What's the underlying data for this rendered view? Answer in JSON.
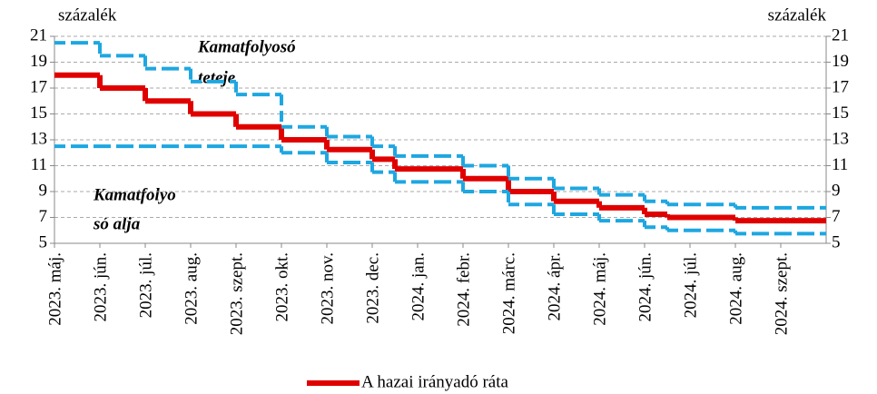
{
  "chart_data": {
    "type": "step",
    "y_label": "százalék",
    "y2_label": "százalék",
    "categories": [
      "2023. máj.",
      null,
      "2023. jún.",
      null,
      "2023. júl.",
      null,
      "2023. aug.",
      null,
      "2023. szept.",
      null,
      "2023. okt.",
      null,
      "2023. nov.",
      null,
      "2023. dec.",
      null,
      "2024. jan.",
      null,
      "2024. febr.",
      null,
      "2024. márc.",
      null,
      "2024. ápr.",
      null,
      "2024. máj.",
      null,
      "2024. jún.",
      null,
      "2024. júl.",
      null,
      "2024. aug.",
      null,
      "2024. szept.",
      null
    ],
    "series": [
      {
        "name": "A hazai irányadó ráta",
        "color": "#e00000",
        "dashed": false,
        "values": [
          18,
          18,
          17,
          17,
          16,
          16,
          15,
          15,
          14,
          14,
          13,
          13,
          12.25,
          12.25,
          11.5,
          10.75,
          10.75,
          10.75,
          10,
          10,
          9,
          9,
          8.25,
          8.25,
          7.75,
          7.75,
          7.25,
          7,
          7,
          7,
          6.75,
          6.75,
          6.75,
          6.75
        ]
      },
      {
        "name": null,
        "color": "#1ea7e1",
        "dashed": true,
        "values": [
          20.5,
          20.5,
          19.5,
          19.5,
          18.5,
          18.5,
          17.5,
          17.5,
          16.5,
          16.5,
          14,
          14,
          13.25,
          13.25,
          12.5,
          11.75,
          11.75,
          11.75,
          11,
          11,
          10,
          10,
          9.25,
          9.25,
          8.75,
          8.75,
          8.25,
          8,
          8,
          8,
          7.75,
          7.75,
          7.75,
          7.75
        ]
      },
      {
        "name": null,
        "color": "#1ea7e1",
        "dashed": true,
        "values": [
          12.5,
          12.5,
          12.5,
          12.5,
          12.5,
          12.5,
          12.5,
          12.5,
          12.5,
          12.5,
          12,
          12,
          11.25,
          11.25,
          10.5,
          9.75,
          9.75,
          9.75,
          9,
          9,
          8,
          8,
          7.25,
          7.25,
          6.75,
          6.75,
          6.25,
          6,
          6,
          6,
          5.75,
          5.75,
          5.75,
          5.75
        ]
      }
    ],
    "annotations": [
      "Kamatfolyosó",
      "teteje",
      "Kamatfolyo",
      "só alja"
    ],
    "ylim": [
      5,
      21
    ],
    "yticks": [
      5,
      7,
      9,
      11,
      13,
      15,
      17,
      19,
      21
    ],
    "y2lim": [
      5,
      21
    ],
    "y2ticks": [
      5,
      7,
      9,
      11,
      13,
      15,
      17,
      19,
      21
    ],
    "grid": true,
    "legend": "bottom"
  }
}
